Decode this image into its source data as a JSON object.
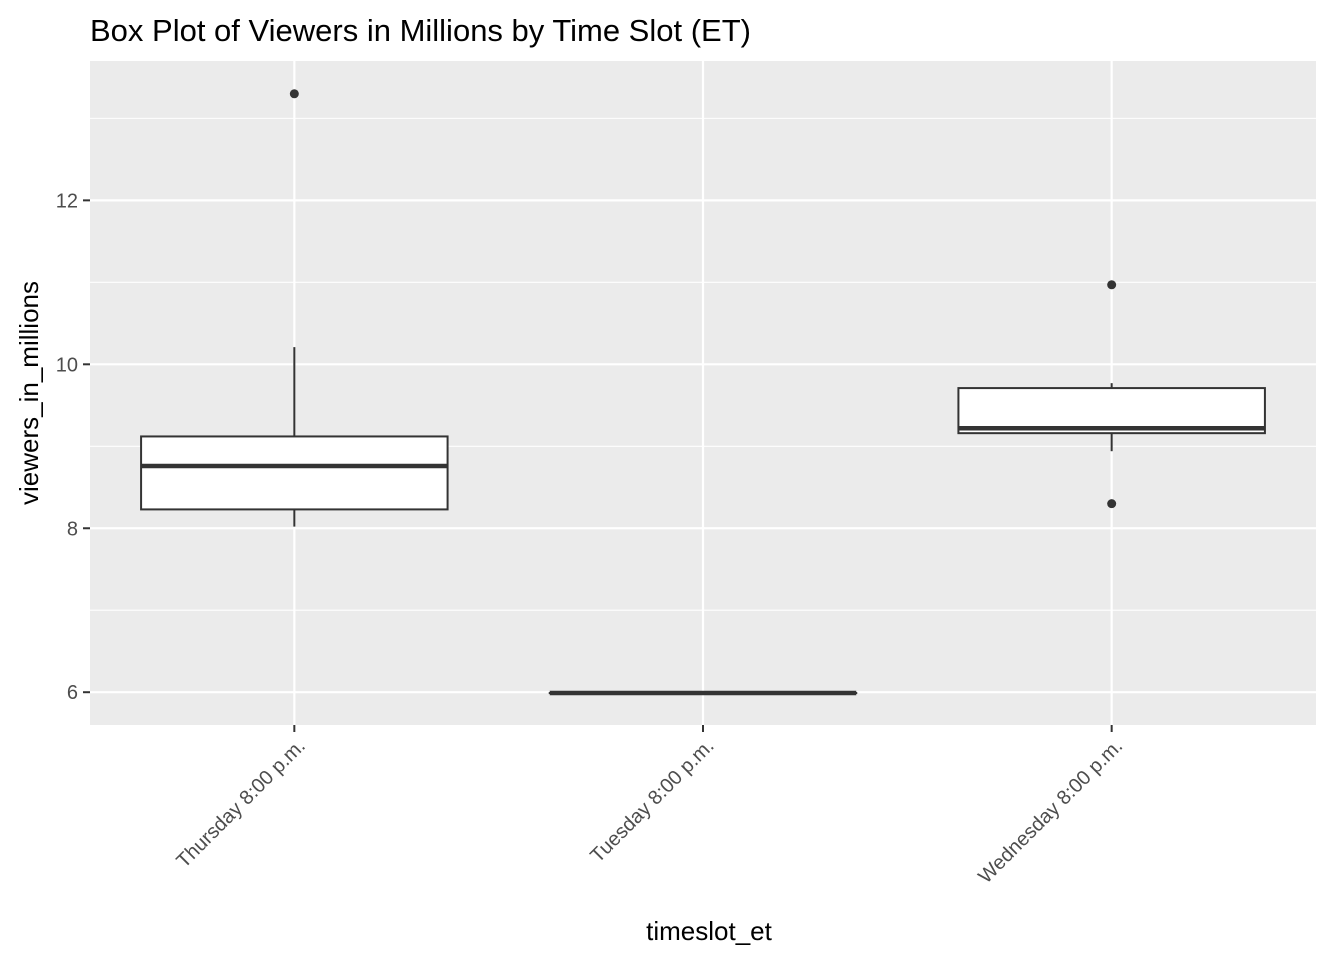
{
  "chart_data": {
    "type": "box",
    "title": "Box Plot of Viewers in Millions by Time Slot (ET)",
    "xlabel": "timeslot_et",
    "ylabel": "viewers_in_millions",
    "ylim": [
      5.6,
      13.7
    ],
    "y_ticks": [
      6,
      8,
      10,
      12
    ],
    "y_tick_labels": [
      "6",
      "8",
      "10",
      "12"
    ],
    "grid": true,
    "categories": [
      "Thursday 8:00 p.m.",
      "Tuesday 8:00 p.m.",
      "Wednesday 8:00 p.m."
    ],
    "boxes": [
      {
        "category": "Thursday 8:00 p.m.",
        "whisker_low": 8.02,
        "q1": 8.23,
        "median": 8.76,
        "q3": 9.12,
        "whisker_high": 10.21,
        "outliers": [
          13.3
        ]
      },
      {
        "category": "Tuesday 8:00 p.m.",
        "whisker_low": 5.99,
        "q1": 5.99,
        "median": 5.99,
        "q3": 5.99,
        "whisker_high": 5.99,
        "outliers": []
      },
      {
        "category": "Wednesday 8:00 p.m.",
        "whisker_low": 8.94,
        "q1": 9.16,
        "median": 9.22,
        "q3": 9.71,
        "whisker_high": 9.77,
        "outliers": [
          10.97,
          8.3
        ]
      }
    ],
    "colors": {
      "panel": "#ebebeb",
      "grid": "#ffffff",
      "box_fill": "#ffffff",
      "box_line": "#333333",
      "tick_text": "#4d4d4d",
      "text": "#000000"
    }
  }
}
